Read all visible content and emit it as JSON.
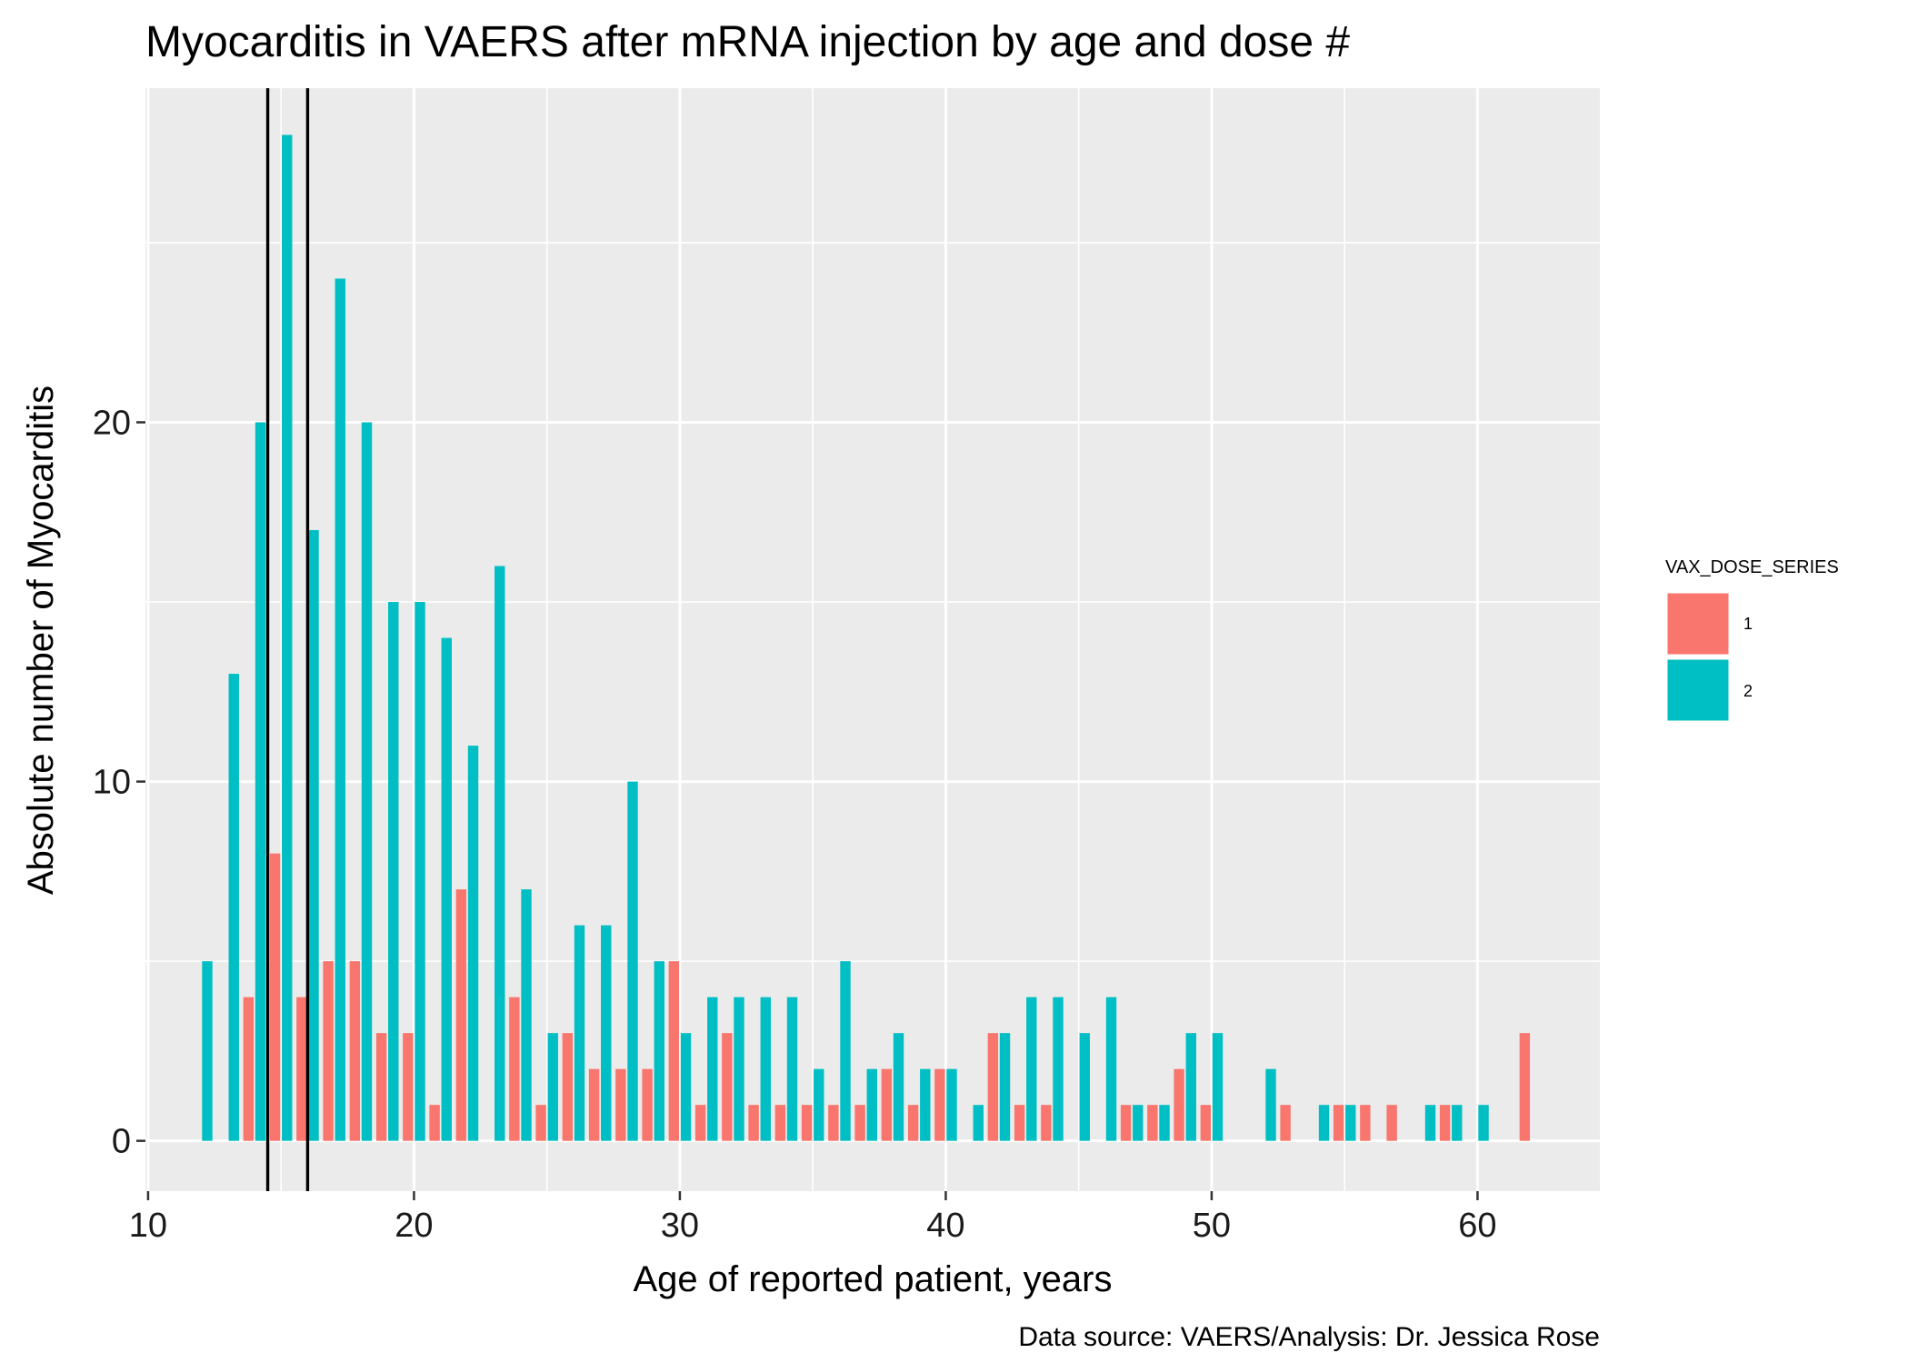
{
  "chart_data": {
    "type": "bar",
    "title": "Myocarditis in VAERS after mRNA injection by age and dose #",
    "xlabel": "Age of reported patient, years",
    "ylabel": "Absolute number of Myocarditis",
    "caption": "Data source: VAERS/Analysis: Dr. Jessica Rose",
    "xlim": [
      9.9,
      64.6
    ],
    "ylim": [
      -1.4,
      29.3
    ],
    "xticks": [
      10,
      20,
      30,
      40,
      50,
      60
    ],
    "yticks": [
      0,
      10,
      20
    ],
    "grid": true,
    "legend": {
      "title": "VAX_DOSE_SERIES",
      "position": "right",
      "entries": [
        {
          "label": "1",
          "color": "#F8766D"
        },
        {
          "label": "2",
          "color": "#00BFC4"
        }
      ]
    },
    "vlines": [
      14.5,
      16
    ],
    "series": [
      {
        "name": "1",
        "color": "#F8766D",
        "points": [
          [
            14,
            4
          ],
          [
            15,
            8
          ],
          [
            16,
            4
          ],
          [
            17,
            5
          ],
          [
            18,
            5
          ],
          [
            19,
            3
          ],
          [
            20,
            3
          ],
          [
            21,
            1
          ],
          [
            22,
            7
          ],
          [
            24,
            4
          ],
          [
            25,
            1
          ],
          [
            26,
            3
          ],
          [
            27,
            2
          ],
          [
            28,
            2
          ],
          [
            29,
            2
          ],
          [
            30,
            5
          ],
          [
            31,
            1
          ],
          [
            32,
            3
          ],
          [
            33,
            1
          ],
          [
            34,
            1
          ],
          [
            35,
            1
          ],
          [
            36,
            1
          ],
          [
            37,
            1
          ],
          [
            38,
            2
          ],
          [
            39,
            1
          ],
          [
            40,
            2
          ],
          [
            42,
            3
          ],
          [
            43,
            1
          ],
          [
            44,
            1
          ],
          [
            47,
            1
          ],
          [
            48,
            1
          ],
          [
            49,
            2
          ],
          [
            50,
            1
          ],
          [
            53,
            1
          ],
          [
            55,
            1
          ],
          [
            56,
            1
          ],
          [
            57,
            1
          ],
          [
            59,
            1
          ],
          [
            62,
            3
          ]
        ]
      },
      {
        "name": "2",
        "color": "#00BFC4",
        "points": [
          [
            12,
            5
          ],
          [
            13,
            13
          ],
          [
            14,
            20
          ],
          [
            15,
            28
          ],
          [
            16,
            17
          ],
          [
            17,
            24
          ],
          [
            18,
            20
          ],
          [
            19,
            15
          ],
          [
            20,
            15
          ],
          [
            21,
            14
          ],
          [
            22,
            11
          ],
          [
            23,
            16
          ],
          [
            24,
            7
          ],
          [
            25,
            3
          ],
          [
            26,
            6
          ],
          [
            27,
            6
          ],
          [
            28,
            10
          ],
          [
            29,
            5
          ],
          [
            30,
            3
          ],
          [
            31,
            4
          ],
          [
            32,
            4
          ],
          [
            33,
            4
          ],
          [
            34,
            4
          ],
          [
            35,
            2
          ],
          [
            36,
            5
          ],
          [
            37,
            2
          ],
          [
            38,
            3
          ],
          [
            39,
            2
          ],
          [
            40,
            2
          ],
          [
            41,
            1
          ],
          [
            42,
            3
          ],
          [
            43,
            4
          ],
          [
            44,
            4
          ],
          [
            45,
            3
          ],
          [
            46,
            4
          ],
          [
            47,
            1
          ],
          [
            48,
            1
          ],
          [
            49,
            3
          ],
          [
            50,
            3
          ],
          [
            52,
            2
          ],
          [
            54,
            1
          ],
          [
            55,
            1
          ],
          [
            58,
            1
          ],
          [
            59,
            1
          ],
          [
            60,
            1
          ]
        ]
      }
    ]
  }
}
